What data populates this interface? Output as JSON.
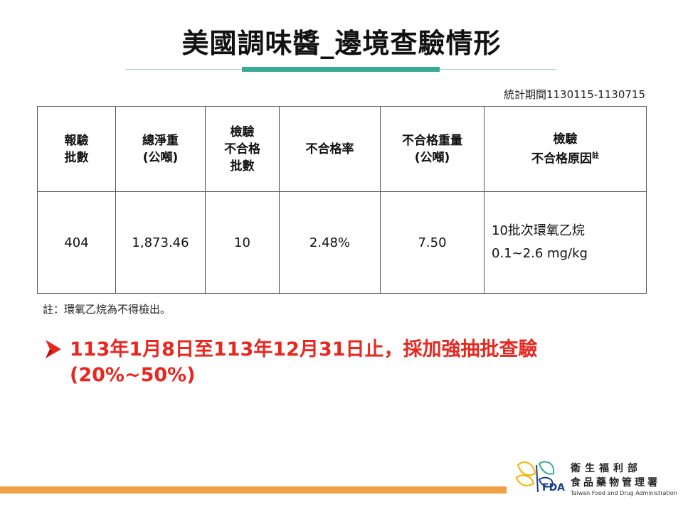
{
  "title": "美國調味醬_邊境查驗情形",
  "period": "統計期間1130115-1130715",
  "table": {
    "headers": [
      [
        "報驗",
        "批數"
      ],
      [
        "總淨重",
        "(公噸)"
      ],
      [
        "檢驗",
        "不合格",
        "批數"
      ],
      [
        "不合格率"
      ],
      [
        "不合格重量",
        "(公噸)"
      ],
      [
        "檢驗",
        "不合格原因"
      ]
    ],
    "header_note_mark": "註",
    "row": {
      "lots": "404",
      "net_weight": "1,873.46",
      "failed_lots": "10",
      "failure_rate": "2.48%",
      "failed_weight": "7.50",
      "reason_line1": "10批次環氧乙烷",
      "reason_line2": "0.1~2.6 mg/kg"
    }
  },
  "footnote": "註：環氧乙烷為不得檢出。",
  "bullet": {
    "line1": "113年1月8日至113年12月31日止，採加強抽批查驗",
    "line2": "(20%~50%)"
  },
  "logo": {
    "cn_line1": "衛生福利部",
    "cn_line2": "食品藥物管理署",
    "en_line": "Taiwan Food and Drug Administration",
    "fda": "FDA"
  },
  "colors": {
    "accent_teal": "#3aaa98",
    "bullet_red": "#e8271f",
    "bottom_bar_orange": "#f0a046"
  }
}
